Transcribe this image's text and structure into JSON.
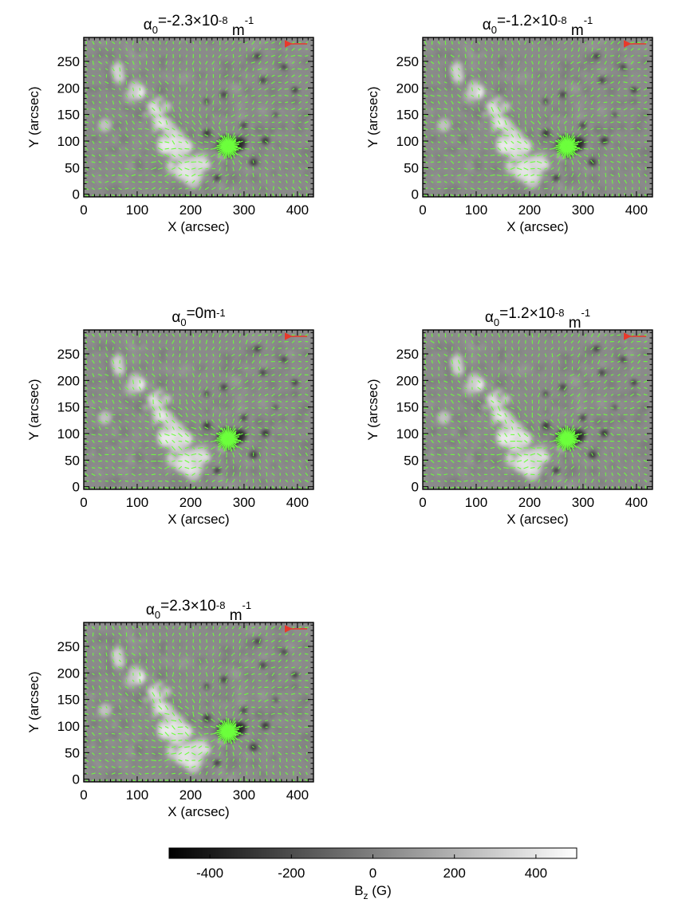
{
  "chart_data": [
    {
      "type": "heatmap",
      "title": {
        "symbol": "α",
        "sub": "0",
        "main": "=-2.3×10",
        "sup": "-8",
        "unit": " m",
        "unit_sup": "-1"
      },
      "xlabel": "X (arcsec)",
      "ylabel": "Y (arcsec)",
      "xlim": [
        0,
        430
      ],
      "ylim": [
        -5,
        295
      ],
      "xticks": [
        0,
        100,
        200,
        300,
        400
      ],
      "yticks": [
        0,
        50,
        100,
        150,
        200,
        250
      ],
      "vector_overlay": {
        "color": "#6cff3c",
        "reference_arrow_color": "#e8392b"
      }
    },
    {
      "type": "heatmap",
      "title": {
        "symbol": "α",
        "sub": "0",
        "main": "=-1.2×10",
        "sup": "-8",
        "unit": " m",
        "unit_sup": "-1"
      },
      "xlabel": "X (arcsec)",
      "ylabel": "Y (arcsec)",
      "xlim": [
        0,
        430
      ],
      "ylim": [
        -5,
        295
      ],
      "xticks": [
        0,
        100,
        200,
        300,
        400
      ],
      "yticks": [
        0,
        50,
        100,
        150,
        200,
        250
      ],
      "vector_overlay": {
        "color": "#6cff3c",
        "reference_arrow_color": "#e8392b"
      }
    },
    {
      "type": "heatmap",
      "title": {
        "symbol": "α",
        "sub": "0",
        "main": "=0m",
        "sup": "-1",
        "unit": "",
        "unit_sup": ""
      },
      "xlabel": "X (arcsec)",
      "ylabel": "Y (arcsec)",
      "xlim": [
        0,
        430
      ],
      "ylim": [
        -5,
        295
      ],
      "xticks": [
        0,
        100,
        200,
        300,
        400
      ],
      "yticks": [
        0,
        50,
        100,
        150,
        200,
        250
      ],
      "vector_overlay": {
        "color": "#6cff3c",
        "reference_arrow_color": "#e8392b"
      }
    },
    {
      "type": "heatmap",
      "title": {
        "symbol": "α",
        "sub": "0",
        "main": "=1.2×10",
        "sup": "-8",
        "unit": " m",
        "unit_sup": "-1"
      },
      "xlabel": "X (arcsec)",
      "ylabel": "Y (arcsec)",
      "xlim": [
        0,
        430
      ],
      "ylim": [
        -5,
        295
      ],
      "xticks": [
        0,
        100,
        200,
        300,
        400
      ],
      "yticks": [
        0,
        50,
        100,
        150,
        200,
        250
      ],
      "vector_overlay": {
        "color": "#6cff3c",
        "reference_arrow_color": "#e8392b"
      }
    },
    {
      "type": "heatmap",
      "title": {
        "symbol": "α",
        "sub": "0",
        "main": "=2.3×10",
        "sup": "-8",
        "unit": " m",
        "unit_sup": "-1"
      },
      "xlabel": "X (arcsec)",
      "ylabel": "Y (arcsec)",
      "xlim": [
        0,
        430
      ],
      "ylim": [
        -5,
        295
      ],
      "xticks": [
        0,
        100,
        200,
        300,
        400
      ],
      "yticks": [
        0,
        50,
        100,
        150,
        200,
        250
      ],
      "vector_overlay": {
        "color": "#6cff3c",
        "reference_arrow_color": "#e8392b"
      }
    }
  ],
  "colorbar": {
    "label": "B",
    "label_sub": "z",
    "label_unit": " (G)",
    "range": [
      -500,
      500
    ],
    "ticks": [
      -400,
      -200,
      0,
      200,
      400
    ],
    "colormap": "grayscale black-to-white"
  }
}
